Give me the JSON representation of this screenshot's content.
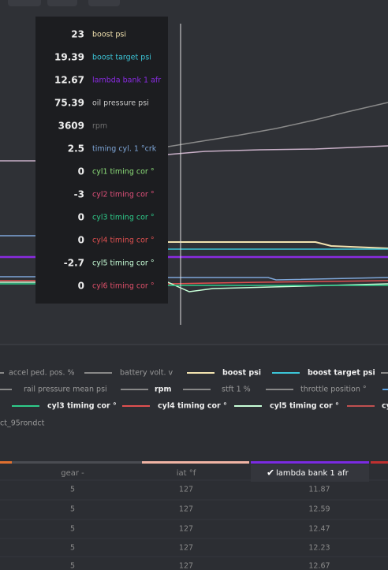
{
  "tooltip": {
    "rows": [
      {
        "value": 23,
        "label": "boost psi",
        "color": "#f3e3b0"
      },
      {
        "value": 19.39,
        "label": "boost target psi",
        "color": "#3cc6d8"
      },
      {
        "value": 12.67,
        "label": "lambda bank 1 afr",
        "color": "#8a2be2"
      },
      {
        "value": 75.39,
        "label": "oil pressure psi",
        "color": "#c8c8c8"
      },
      {
        "value": 3609,
        "label": "rpm",
        "color": "#707070"
      },
      {
        "value": 2.5,
        "label": "timing cyl. 1 °crk",
        "color": "#7ea6d8"
      },
      {
        "value": 0,
        "label": "cyl1 timing cor °",
        "color": "#8ee07a"
      },
      {
        "value": -3,
        "label": "cyl2 timing cor °",
        "color": "#e0507a"
      },
      {
        "value": 0,
        "label": "cyl3 timing cor °",
        "color": "#2ecc8a"
      },
      {
        "value": 0,
        "label": "cyl4 timing cor °",
        "color": "#e05050"
      },
      {
        "value": -2.7,
        "label": "cyl5 timing cor °",
        "color": "#c8ffd8"
      },
      {
        "value": 0,
        "label": "cyl6 timing cor °",
        "color": "#e0506a"
      }
    ]
  },
  "legend": {
    "items": [
      {
        "label": "accel ped. pos. %",
        "color": "#888888"
      },
      {
        "label": "battery volt. v",
        "color": "#888888"
      },
      {
        "label": "boost psi",
        "color": "#f3e3b0",
        "bold": true
      },
      {
        "label": "boost target psi",
        "color": "#3cc6d8",
        "bold": true
      },
      {
        "label": "rail pressure mean psi",
        "color": "#888888"
      },
      {
        "label": "rpm",
        "color": "#888888",
        "bold": true
      },
      {
        "label": "stft 1 %",
        "color": "#888888"
      },
      {
        "label": "throttle position °",
        "color": "#888888"
      },
      {
        "label": "cyl3 timing cor °",
        "color": "#2ecc8a",
        "bold": true
      },
      {
        "label": "cyl4 timing cor °",
        "color": "#e05050",
        "bold": true
      },
      {
        "label": "cyl5 timing cor °",
        "color": "#c8ffd8",
        "bold": true
      },
      {
        "label": "cy",
        "color": "#c05050",
        "bold": true
      },
      {
        "label": "ct_95rondct",
        "color": "#888888"
      }
    ]
  },
  "table": {
    "headers": [
      "gear -",
      "iat °f",
      "lambda bank 1 afr"
    ],
    "rows": [
      [
        5,
        127,
        11.87
      ],
      [
        5,
        127,
        12.59
      ],
      [
        5,
        127,
        12.47
      ],
      [
        5,
        127,
        12.23
      ],
      [
        5,
        127,
        12.67
      ]
    ]
  }
}
